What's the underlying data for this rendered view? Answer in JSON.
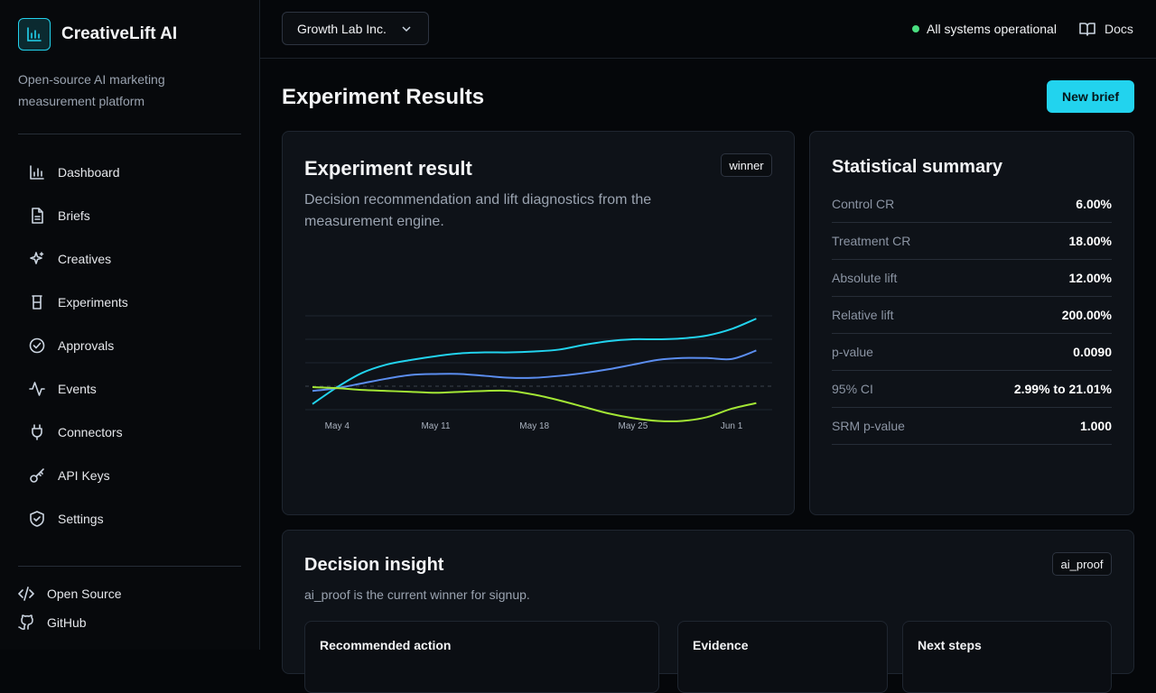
{
  "brand": {
    "name": "CreativeLift AI",
    "tagline": "Open-source AI marketing measurement platform"
  },
  "nav": [
    "Dashboard",
    "Briefs",
    "Creatives",
    "Experiments",
    "Approvals",
    "Events",
    "Connectors",
    "API Keys",
    "Settings"
  ],
  "footer_links": [
    "Open Source",
    "GitHub"
  ],
  "topbar": {
    "workspace": "Growth Lab Inc.",
    "status": "All systems operational",
    "docs": "Docs"
  },
  "page": {
    "title": "Experiment Results",
    "action": "New brief"
  },
  "result_card": {
    "title": "Experiment result",
    "badge": "winner",
    "description": "Decision recommendation and lift diagnostics from the measurement engine.",
    "chart": {
      "type": "line",
      "categories": [
        null,
        "May 4",
        null,
        null,
        null,
        "May 11",
        null,
        null,
        null,
        "May 18",
        null,
        null,
        null,
        "May 25",
        null,
        null,
        null,
        "Jun 1",
        null
      ],
      "series": [
        {
          "color": "#22d3ee",
          "values": [
            6,
            24,
            39,
            48,
            53,
            57,
            60,
            61,
            61,
            62,
            64,
            69,
            73,
            75,
            75,
            76,
            79,
            86,
            97
          ]
        },
        {
          "color": "#5b8def",
          "values": [
            20,
            23,
            28,
            33,
            37,
            38,
            38,
            36,
            34,
            34,
            36,
            39,
            43,
            48,
            53,
            55,
            55,
            54,
            63
          ]
        },
        {
          "color": "#a3e635",
          "values": [
            24,
            23,
            21,
            20,
            19,
            18,
            19,
            20,
            20,
            16,
            10,
            3,
            -4,
            -9,
            -12,
            -12,
            -8,
            1,
            7
          ]
        }
      ],
      "ylim": [
        0,
        100
      ],
      "yticks": [
        0,
        25,
        50,
        75,
        100
      ],
      "grid": true
    }
  },
  "summary": {
    "title": "Statistical summary",
    "rows": [
      {
        "label": "Control CR",
        "value": "6.00%"
      },
      {
        "label": "Treatment CR",
        "value": "18.00%"
      },
      {
        "label": "Absolute lift",
        "value": "12.00%"
      },
      {
        "label": "Relative lift",
        "value": "200.00%"
      },
      {
        "label": "p-value",
        "value": "0.0090"
      },
      {
        "label": "95% CI",
        "value": "2.99% to 21.01%"
      },
      {
        "label": "SRM p-value",
        "value": "1.000"
      }
    ]
  },
  "insight": {
    "title": "Decision insight",
    "badge": "ai_proof",
    "text": "ai_proof is the current winner for signup.",
    "panels": [
      "Recommended action",
      "Evidence",
      "Next steps"
    ]
  }
}
